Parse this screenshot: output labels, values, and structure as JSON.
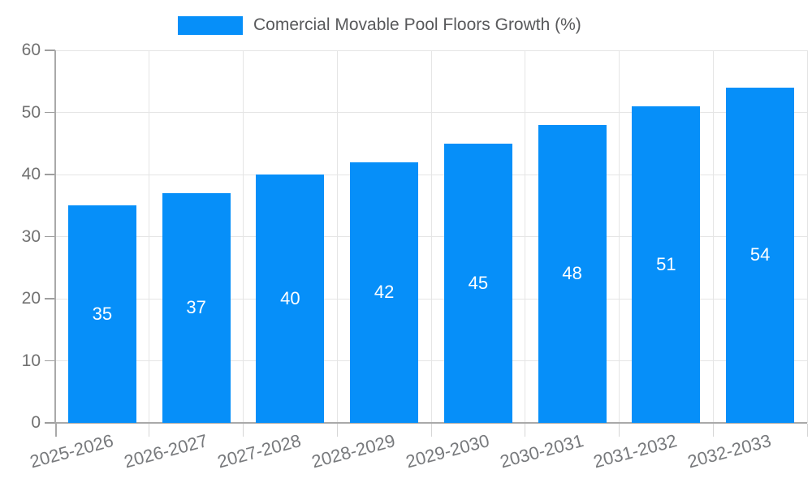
{
  "legend": {
    "label": "Comercial Movable Pool Floors Growth (%)"
  },
  "chart_data": {
    "type": "bar",
    "title": "Comercial Movable Pool Floors Growth (%)",
    "categories": [
      "2025-2026",
      "2026-2027",
      "2027-2028",
      "2028-2029",
      "2029-2030",
      "2030-2031",
      "2031-2032",
      "2032-2033"
    ],
    "series": [
      {
        "name": "Comercial Movable Pool Floors Growth (%)",
        "values": [
          35,
          37,
          40,
          42,
          45,
          48,
          51,
          54
        ]
      }
    ],
    "value_labels": [
      "35",
      "37",
      "40",
      "42",
      "45",
      "48",
      "51",
      "54"
    ],
    "xlabel": "",
    "ylabel": "",
    "ylim": [
      0,
      60
    ],
    "yticks": [
      0,
      10,
      20,
      30,
      40,
      50,
      60
    ],
    "grid": true,
    "legend_position": "top",
    "x_label_rotation_deg": -15
  },
  "colors": {
    "bar": "#068FF9",
    "grid": "#E5E5E5",
    "axis": "#A9A9A9",
    "tick_text": "#717171",
    "x_label_text": "#77797C",
    "legend_text": "#58595B",
    "value_label_text": "#FFFFFF",
    "background": "#FFFFFF"
  }
}
